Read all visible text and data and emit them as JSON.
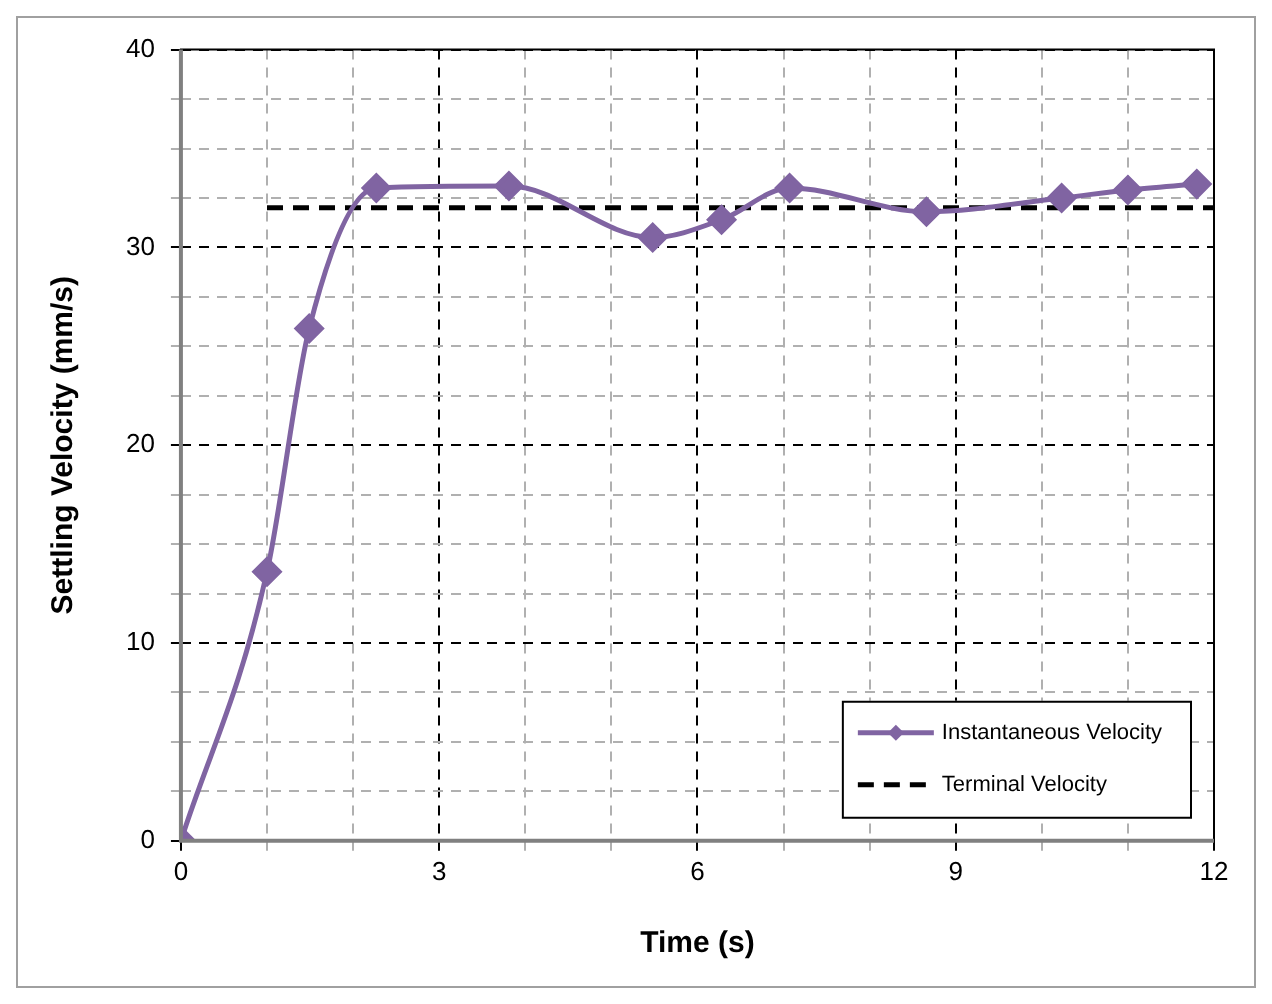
{
  "chart_data": {
    "type": "line",
    "xlabel": "Time (s)",
    "ylabel": "Settling Velocity (mm/s)",
    "xlim": [
      0,
      12
    ],
    "xticks": [
      0,
      {
        "value": 1,
        "label": null
      },
      {
        "value": 2,
        "label": null
      },
      3,
      {
        "value": 4,
        "label": null
      },
      {
        "value": 5,
        "label": null
      },
      6,
      {
        "value": 7,
        "label": null
      },
      {
        "value": 8,
        "label": null
      },
      9,
      {
        "value": 10,
        "label": null
      },
      {
        "value": 11,
        "label": null
      },
      12
    ],
    "ylim": [
      0,
      40
    ],
    "yticks": [
      0,
      {
        "value": 2.5,
        "label": null
      },
      {
        "value": 5,
        "label": null
      },
      {
        "value": 7.5,
        "label": null
      },
      10,
      {
        "value": 12.5,
        "label": null
      },
      {
        "value": 15,
        "label": null
      },
      {
        "value": 17.5,
        "label": null
      },
      20,
      {
        "value": 22.5,
        "label": null
      },
      {
        "value": 25,
        "label": null
      },
      {
        "value": 27.5,
        "label": null
      },
      30,
      {
        "value": 32.5,
        "label": null
      },
      {
        "value": 35,
        "label": null
      },
      {
        "value": 37.5,
        "label": null
      },
      40
    ],
    "grid": true,
    "legend": "bottom right",
    "series": [
      {
        "name": "Instantaneous Velocity",
        "color": "#8064a2",
        "marker": "diamond",
        "line_style": "solid",
        "x": [
          0,
          1.0,
          1.49,
          2.27,
          3.81,
          5.48,
          6.28,
          7.07,
          8.66,
          10.23,
          11.0,
          11.8
        ],
        "values": [
          0,
          13.6,
          25.9,
          33.0,
          33.1,
          30.5,
          31.4,
          33.0,
          31.8,
          32.5,
          32.9,
          33.2
        ]
      },
      {
        "name": "Terminal Velocity",
        "color": "#000000",
        "marker": "none",
        "line_style": "dashed",
        "x": [
          1,
          12
        ],
        "values": [
          32,
          32
        ]
      }
    ]
  }
}
